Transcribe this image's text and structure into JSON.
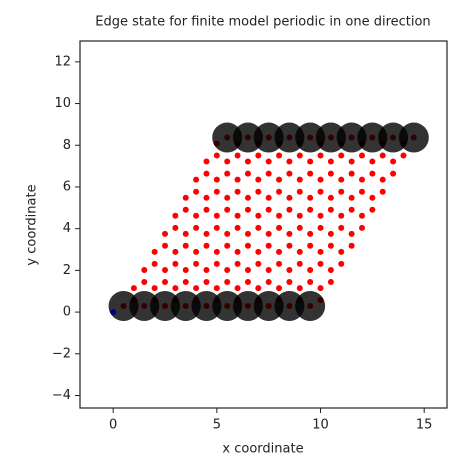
{
  "chart_data": {
    "type": "scatter",
    "title": "Edge state for finite model periodic in one direction",
    "xlabel": "x coordinate",
    "ylabel": "y coordinate",
    "xlim": [
      -1.6,
      16.1
    ],
    "ylim": [
      -4.6,
      13
    ],
    "xticks": [
      0,
      5,
      10,
      15
    ],
    "yticks": [
      {
        "value": -4,
        "label": "−4"
      },
      {
        "value": -2,
        "label": "−2"
      },
      0,
      2,
      4,
      6,
      8,
      10,
      12
    ],
    "series": [
      {
        "color": "#ff0000",
        "marker": "dot",
        "x": [
          0.5,
          1.5,
          2.5,
          3.5,
          4.5,
          5.5,
          6.5,
          7.5,
          8.5,
          9.5,
          1,
          2,
          3,
          4,
          5,
          6,
          7,
          8,
          9,
          10,
          1,
          2,
          3,
          4,
          5,
          6,
          7,
          8,
          9,
          10,
          1.5,
          2.5,
          3.5,
          4.5,
          5.5,
          6.5,
          7.5,
          8.5,
          9.5,
          10.5,
          1.5,
          2.5,
          3.5,
          4.5,
          5.5,
          6.5,
          7.5,
          8.5,
          9.5,
          10.5,
          2,
          3,
          4,
          5,
          6,
          7,
          8,
          9,
          10,
          11,
          2,
          3,
          4,
          5,
          6,
          7,
          8,
          9,
          10,
          11,
          2.5,
          3.5,
          4.5,
          5.5,
          6.5,
          7.5,
          8.5,
          9.5,
          10.5,
          11.5,
          2.5,
          3.5,
          4.5,
          5.5,
          6.5,
          7.5,
          8.5,
          9.5,
          10.5,
          11.5,
          3,
          4,
          5,
          6,
          7,
          8,
          9,
          10,
          11,
          12,
          3,
          4,
          5,
          6,
          7,
          8,
          9,
          10,
          11,
          12,
          3.5,
          4.5,
          5.5,
          6.5,
          7.5,
          8.5,
          9.5,
          10.5,
          11.5,
          12.5,
          3.5,
          4.5,
          5.5,
          6.5,
          7.5,
          8.5,
          9.5,
          10.5,
          11.5,
          12.5,
          4,
          5,
          6,
          7,
          8,
          9,
          10,
          11,
          12,
          13,
          4,
          5,
          6,
          7,
          8,
          9,
          10,
          11,
          12,
          13,
          4.5,
          5.5,
          6.5,
          7.5,
          8.5,
          9.5,
          10.5,
          11.5,
          12.5,
          13.5,
          4.5,
          5.5,
          6.5,
          7.5,
          8.5,
          9.5,
          10.5,
          11.5,
          12.5,
          13.5,
          5,
          6,
          7,
          8,
          9,
          10,
          11,
          12,
          13,
          14,
          5,
          6,
          7,
          8,
          9,
          10,
          11,
          12,
          13,
          14,
          5.5,
          6.5,
          7.5,
          8.5,
          9.5,
          10.5,
          11.5,
          12.5,
          13.5,
          14.5
        ],
        "y": [
          0.29,
          0.29,
          0.29,
          0.29,
          0.29,
          0.29,
          0.29,
          0.29,
          0.29,
          0.29,
          0.58,
          0.58,
          0.58,
          0.58,
          0.58,
          0.58,
          0.58,
          0.58,
          0.58,
          0.58,
          1.15,
          1.15,
          1.15,
          1.15,
          1.15,
          1.15,
          1.15,
          1.15,
          1.15,
          1.15,
          1.44,
          1.44,
          1.44,
          1.44,
          1.44,
          1.44,
          1.44,
          1.44,
          1.44,
          1.44,
          2.02,
          2.02,
          2.02,
          2.02,
          2.02,
          2.02,
          2.02,
          2.02,
          2.02,
          2.02,
          2.31,
          2.31,
          2.31,
          2.31,
          2.31,
          2.31,
          2.31,
          2.31,
          2.31,
          2.31,
          2.89,
          2.89,
          2.89,
          2.89,
          2.89,
          2.89,
          2.89,
          2.89,
          2.89,
          2.89,
          3.18,
          3.18,
          3.18,
          3.18,
          3.18,
          3.18,
          3.18,
          3.18,
          3.18,
          3.18,
          3.75,
          3.75,
          3.75,
          3.75,
          3.75,
          3.75,
          3.75,
          3.75,
          3.75,
          3.75,
          4.04,
          4.04,
          4.04,
          4.04,
          4.04,
          4.04,
          4.04,
          4.04,
          4.04,
          4.04,
          4.62,
          4.62,
          4.62,
          4.62,
          4.62,
          4.62,
          4.62,
          4.62,
          4.62,
          4.62,
          4.91,
          4.91,
          4.91,
          4.91,
          4.91,
          4.91,
          4.91,
          4.91,
          4.91,
          4.91,
          5.48,
          5.48,
          5.48,
          5.48,
          5.48,
          5.48,
          5.48,
          5.48,
          5.48,
          5.48,
          5.77,
          5.77,
          5.77,
          5.77,
          5.77,
          5.77,
          5.77,
          5.77,
          5.77,
          5.77,
          6.35,
          6.35,
          6.35,
          6.35,
          6.35,
          6.35,
          6.35,
          6.35,
          6.35,
          6.35,
          6.64,
          6.64,
          6.64,
          6.64,
          6.64,
          6.64,
          6.64,
          6.64,
          6.64,
          6.64,
          7.22,
          7.22,
          7.22,
          7.22,
          7.22,
          7.22,
          7.22,
          7.22,
          7.22,
          7.22,
          7.51,
          7.51,
          7.51,
          7.51,
          7.51,
          7.51,
          7.51,
          7.51,
          7.51,
          7.51,
          8.08,
          8.08,
          8.08,
          8.08,
          8.08,
          8.08,
          8.08,
          8.08,
          8.08,
          8.08,
          8.37,
          8.37,
          8.37,
          8.37,
          8.37,
          8.37,
          8.37,
          8.37,
          8.37,
          8.37
        ]
      },
      {
        "color": "#000000",
        "alpha": 0.8,
        "marker": "disk",
        "x": [
          0.5,
          1.5,
          2.5,
          3.5,
          4.5,
          5.5,
          6.5,
          7.5,
          8.5,
          9.5,
          5.5,
          6.5,
          7.5,
          8.5,
          9.5,
          10.5,
          11.5,
          12.5,
          13.5,
          14.5
        ],
        "y": [
          0.29,
          0.29,
          0.29,
          0.29,
          0.29,
          0.29,
          0.29,
          0.29,
          0.29,
          0.29,
          8.37,
          8.37,
          8.37,
          8.37,
          8.37,
          8.37,
          8.37,
          8.37,
          8.37,
          8.37
        ]
      },
      {
        "color": "#000080",
        "marker": "dot",
        "x": [
          0
        ],
        "y": [
          0
        ]
      }
    ]
  }
}
